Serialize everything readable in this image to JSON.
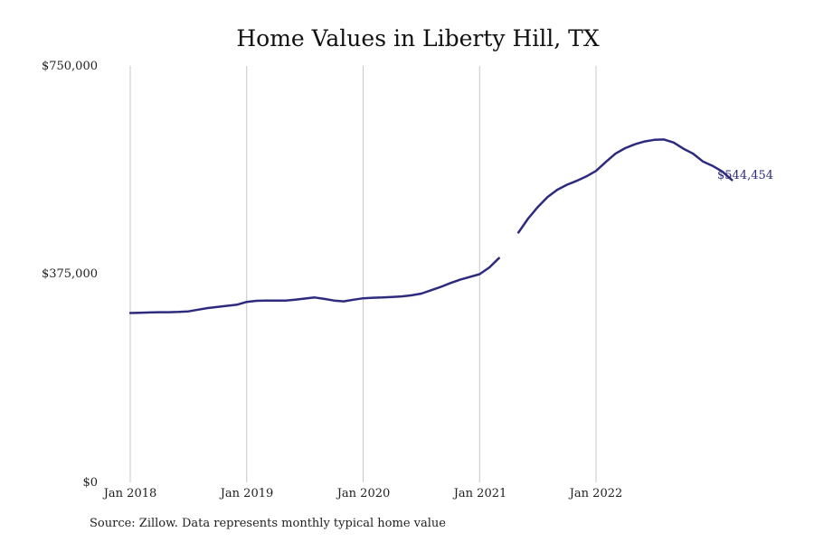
{
  "chart_data": {
    "type": "line",
    "title": "Home Values in Liberty Hill, TX",
    "xlabel": "",
    "ylabel": "",
    "ylim": [
      0,
      750000
    ],
    "y_ticks": [
      "$0",
      "$375,000",
      "$750,000"
    ],
    "x_ticks": [
      "Jan 2018",
      "Jan 2019",
      "Jan 2020",
      "Jan 2021",
      "Jan 2022"
    ],
    "grid": "vertical",
    "line_color": "#2e2a7e",
    "end_label": "$544,454",
    "series": [
      {
        "segments": [
          [
            {
              "x": "2018-01",
              "y": 305000
            },
            {
              "x": "2018-02",
              "y": 305500
            },
            {
              "x": "2018-03",
              "y": 306000
            },
            {
              "x": "2018-04",
              "y": 306500
            },
            {
              "x": "2018-05",
              "y": 306500
            },
            {
              "x": "2018-06",
              "y": 307000
            },
            {
              "x": "2018-07",
              "y": 308000
            },
            {
              "x": "2018-08",
              "y": 311000
            },
            {
              "x": "2018-09",
              "y": 314000
            },
            {
              "x": "2018-10",
              "y": 316000
            },
            {
              "x": "2018-11",
              "y": 318000
            },
            {
              "x": "2018-12",
              "y": 320000
            },
            {
              "x": "2019-01",
              "y": 325000
            },
            {
              "x": "2019-02",
              "y": 327000
            },
            {
              "x": "2019-03",
              "y": 327500
            },
            {
              "x": "2019-04",
              "y": 327500
            },
            {
              "x": "2019-05",
              "y": 327500
            },
            {
              "x": "2019-06",
              "y": 329000
            },
            {
              "x": "2019-07",
              "y": 331000
            },
            {
              "x": "2019-08",
              "y": 333000
            },
            {
              "x": "2019-09",
              "y": 330500
            },
            {
              "x": "2019-10",
              "y": 327500
            },
            {
              "x": "2019-11",
              "y": 326000
            },
            {
              "x": "2019-12",
              "y": 329000
            },
            {
              "x": "2020-01",
              "y": 331500
            },
            {
              "x": "2020-02",
              "y": 332500
            },
            {
              "x": "2020-03",
              "y": 333000
            },
            {
              "x": "2020-04",
              "y": 334000
            },
            {
              "x": "2020-05",
              "y": 335000
            },
            {
              "x": "2020-06",
              "y": 337000
            },
            {
              "x": "2020-07",
              "y": 340000
            },
            {
              "x": "2020-08",
              "y": 346000
            },
            {
              "x": "2020-09",
              "y": 352000
            },
            {
              "x": "2020-10",
              "y": 359000
            },
            {
              "x": "2020-11",
              "y": 365000
            },
            {
              "x": "2020-12",
              "y": 370000
            },
            {
              "x": "2021-01",
              "y": 375000
            },
            {
              "x": "2021-02",
              "y": 387000
            },
            {
              "x": "2021-03",
              "y": 404000
            }
          ],
          [
            {
              "x": "2021-05",
              "y": 450000
            },
            {
              "x": "2021-06",
              "y": 475000
            },
            {
              "x": "2021-07",
              "y": 496000
            },
            {
              "x": "2021-08",
              "y": 514000
            },
            {
              "x": "2021-09",
              "y": 527000
            },
            {
              "x": "2021-10",
              "y": 536000
            },
            {
              "x": "2021-11",
              "y": 543000
            },
            {
              "x": "2021-12",
              "y": 551000
            },
            {
              "x": "2022-01",
              "y": 561000
            },
            {
              "x": "2022-02",
              "y": 577000
            },
            {
              "x": "2022-03",
              "y": 592000
            },
            {
              "x": "2022-04",
              "y": 602000
            },
            {
              "x": "2022-05",
              "y": 609000
            },
            {
              "x": "2022-06",
              "y": 614000
            },
            {
              "x": "2022-07",
              "y": 617000
            },
            {
              "x": "2022-08",
              "y": 617500
            },
            {
              "x": "2022-09",
              "y": 612000
            },
            {
              "x": "2022-10",
              "y": 601000
            },
            {
              "x": "2022-11",
              "y": 592000
            },
            {
              "x": "2022-12",
              "y": 578000
            },
            {
              "x": "2023-01",
              "y": 570000
            },
            {
              "x": "2023-02",
              "y": 560000
            },
            {
              "x": "2023-03",
              "y": 544454
            }
          ]
        ]
      }
    ]
  },
  "source_note": "Source: Zillow. Data represents monthly typical home value"
}
